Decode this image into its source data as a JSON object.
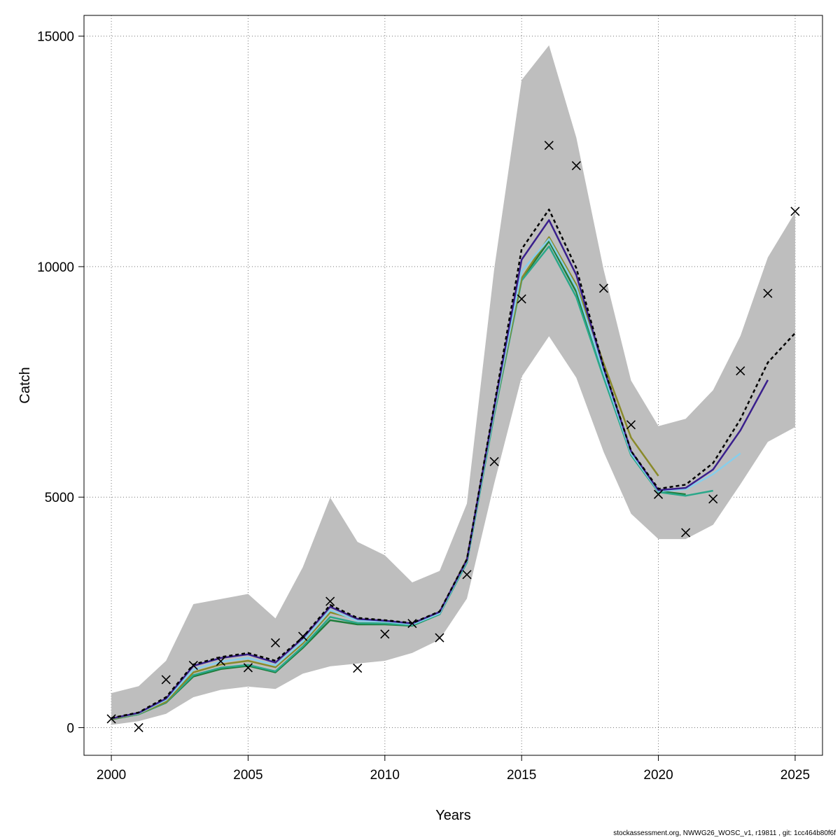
{
  "chart_data": {
    "type": "line",
    "xlabel": "Years",
    "ylabel": "Catch",
    "xlim": [
      1999,
      2026
    ],
    "ylim": [
      -600,
      15450
    ],
    "x_ticks": [
      2000,
      2005,
      2010,
      2015,
      2020,
      2025
    ],
    "y_ticks": [
      0,
      5000,
      10000,
      15000
    ],
    "grid": true,
    "band": {
      "x": [
        2000,
        2001,
        2002,
        2003,
        2004,
        2005,
        2006,
        2007,
        2008,
        2009,
        2010,
        2011,
        2012,
        2013,
        2014,
        2015,
        2016,
        2017,
        2018,
        2019,
        2020,
        2021,
        2022,
        2023,
        2024,
        2025
      ],
      "upper": [
        750,
        900,
        1450,
        2680,
        2790,
        2900,
        2370,
        3480,
        4990,
        4030,
        3740,
        3150,
        3400,
        4860,
        9960,
        14050,
        14800,
        12800,
        9930,
        7530,
        6540,
        6700,
        7320,
        8500,
        10200,
        11180
      ],
      "lower": [
        60,
        140,
        300,
        660,
        820,
        890,
        840,
        1170,
        1330,
        1390,
        1450,
        1620,
        1910,
        2800,
        5300,
        7610,
        8490,
        7590,
        5980,
        4640,
        4090,
        4090,
        4400,
        5280,
        6200,
        6520
      ],
      "color": "#bebebe"
    },
    "series": [
      {
        "color": "#000000",
        "dashed": true,
        "x": [
          2000,
          2001,
          2002,
          2003,
          2004,
          2005,
          2006,
          2007,
          2008,
          2009,
          2010,
          2011,
          2012,
          2013,
          2014,
          2015,
          2016,
          2017,
          2018,
          2019,
          2020,
          2021,
          2022,
          2023,
          2024,
          2025
        ],
        "values": [
          210,
          330,
          660,
          1370,
          1530,
          1620,
          1450,
          1960,
          2660,
          2380,
          2330,
          2270,
          2520,
          3650,
          7000,
          10380,
          11240,
          9970,
          7820,
          6000,
          5180,
          5270,
          5740,
          6690,
          7920,
          8560
        ]
      },
      {
        "color": "#3a1f8c",
        "x": [
          2000,
          2001,
          2002,
          2003,
          2004,
          2005,
          2006,
          2007,
          2008,
          2009,
          2010,
          2011,
          2012,
          2013,
          2014,
          2015,
          2016,
          2017,
          2018,
          2019,
          2020,
          2021,
          2022,
          2023,
          2024
        ],
        "values": [
          200,
          320,
          630,
          1340,
          1510,
          1590,
          1410,
          1940,
          2620,
          2360,
          2320,
          2260,
          2510,
          3640,
          6950,
          10150,
          11010,
          9820,
          7800,
          6000,
          5150,
          5200,
          5600,
          6450,
          7540
        ]
      },
      {
        "color": "#87ceeb",
        "x": [
          2000,
          2001,
          2002,
          2003,
          2004,
          2005,
          2006,
          2007,
          2008,
          2009,
          2010,
          2011,
          2012,
          2013,
          2014,
          2015,
          2016,
          2017,
          2018,
          2019,
          2020,
          2021,
          2022,
          2023
        ],
        "values": [
          200,
          310,
          600,
          1260,
          1430,
          1510,
          1350,
          1870,
          2550,
          2320,
          2300,
          2240,
          2480,
          3620,
          6880,
          9900,
          10600,
          9550,
          7700,
          5950,
          5130,
          5170,
          5500,
          5950
        ]
      },
      {
        "color": "#8a8a2a",
        "x": [
          2000,
          2001,
          2002,
          2003,
          2004,
          2005,
          2006,
          2007,
          2008,
          2009,
          2010,
          2011,
          2012,
          2013,
          2014,
          2015,
          2016,
          2017,
          2018,
          2019,
          2020
        ],
        "values": [
          190,
          300,
          560,
          1200,
          1370,
          1450,
          1310,
          1830,
          2500,
          2350,
          2300,
          2250,
          2500,
          3660,
          6860,
          9750,
          10640,
          9610,
          7900,
          6290,
          5460
        ]
      },
      {
        "color": "#2aa88a",
        "x": [
          2000,
          2001,
          2002,
          2003,
          2004,
          2005,
          2006,
          2007,
          2008,
          2009,
          2010,
          2011,
          2012,
          2013,
          2014,
          2015,
          2016,
          2017,
          2018,
          2019,
          2020,
          2021,
          2022
        ],
        "values": [
          190,
          290,
          550,
          1140,
          1300,
          1360,
          1220,
          1760,
          2400,
          2270,
          2260,
          2220,
          2460,
          3580,
          6790,
          9700,
          10440,
          9340,
          7590,
          5910,
          5110,
          5030,
          5140
        ]
      },
      {
        "color": "#1e7d3a",
        "x": [
          2000,
          2001,
          2002,
          2003,
          2004,
          2005,
          2006,
          2007,
          2008,
          2009,
          2010,
          2011,
          2012,
          2013,
          2014,
          2015,
          2016,
          2017,
          2018,
          2019,
          2020,
          2021
        ],
        "values": [
          180,
          290,
          540,
          1110,
          1270,
          1340,
          1200,
          1730,
          2330,
          2240,
          2240,
          2210,
          2460,
          3600,
          6820,
          9730,
          10550,
          9450,
          7680,
          5980,
          5130,
          5060
        ]
      }
    ],
    "observations": {
      "marker": "x",
      "x": [
        2000,
        2001,
        2002,
        2003,
        2004,
        2005,
        2006,
        2007,
        2008,
        2009,
        2010,
        2011,
        2012,
        2013,
        2014,
        2015,
        2016,
        2017,
        2018,
        2019,
        2020,
        2021,
        2022,
        2023,
        2024,
        2025
      ],
      "values": [
        190,
        0,
        1040,
        1350,
        1440,
        1300,
        1840,
        1980,
        2740,
        1290,
        2030,
        2260,
        1950,
        3320,
        5770,
        9300,
        12630,
        12190,
        9530,
        6570,
        5060,
        4230,
        4960,
        7740,
        9420,
        11200
      ]
    }
  },
  "footer": "stockassessment.org, NWWG26_WOSC_v1, r19811 , git: 1cc464b80f6f"
}
